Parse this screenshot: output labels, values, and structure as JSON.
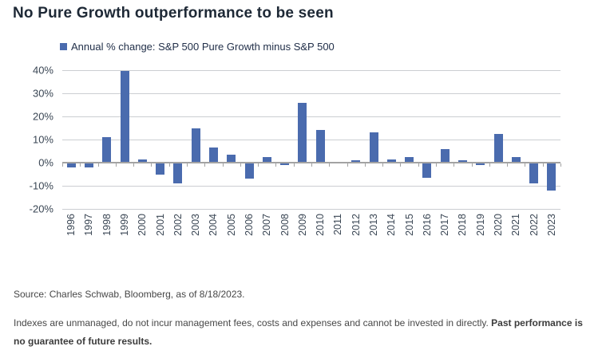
{
  "page": {
    "title": "No Pure Growth outperformance to be seen"
  },
  "legend": {
    "label": "Annual % change: S&P 500 Pure Growth minus S&P 500",
    "marker_color": "#4a6bae"
  },
  "footer": {
    "source": "Source: Charles Schwab, Bloomberg, as of 8/18/2023.",
    "disclaimer": "Indexes are unmanaged, do not incur management fees, costs and expenses and cannot be invested in directly. ",
    "disclaimer_bold": "Past performance is no guarantee of future results."
  },
  "chart_data": {
    "type": "bar",
    "title": "Annual % change: S&P 500 Pure Growth minus S&P 500",
    "categories": [
      "1996",
      "1997",
      "1998",
      "1999",
      "2000",
      "2001",
      "2002",
      "2003",
      "2004",
      "2005",
      "2006",
      "2007",
      "2008",
      "2009",
      "2010",
      "2011",
      "2012",
      "2013",
      "2014",
      "2015",
      "2016",
      "2017",
      "2018",
      "2019",
      "2020",
      "2021",
      "2022",
      "2023"
    ],
    "values": [
      -2,
      -2,
      11,
      39.5,
      1.5,
      -5,
      -9,
      15,
      6.5,
      3.5,
      -7,
      2.5,
      -1,
      26,
      14,
      0,
      1,
      13,
      1.5,
      2.5,
      -6.5,
      6,
      1.2,
      -1.2,
      12.5,
      2.5,
      -9,
      -12
    ],
    "xlabel": "",
    "ylabel": "",
    "ylim": [
      -20,
      40
    ],
    "yticks": [
      40,
      30,
      20,
      10,
      0,
      -10,
      -20
    ],
    "ytick_suffix": "%",
    "grid": true,
    "legend_position": "top",
    "bar_color": "#4a6bae",
    "gridline_color": "#cbced2",
    "axis_color": "#a3a3a3"
  }
}
